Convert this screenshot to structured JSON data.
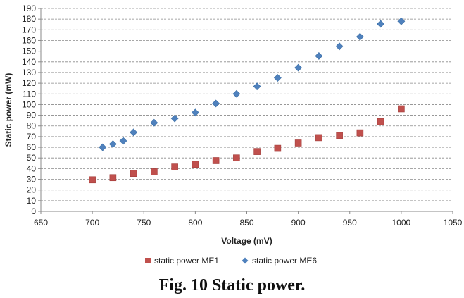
{
  "caption": "Fig. 10 Static power.",
  "chart_data": {
    "type": "scatter",
    "xlabel": "Voltage (mV)",
    "ylabel": "Static power (mW)",
    "xlim": [
      650,
      1050
    ],
    "ylim": [
      0,
      190
    ],
    "xticks": [
      650,
      700,
      750,
      800,
      850,
      900,
      950,
      1000,
      1050
    ],
    "yticks": [
      0,
      10,
      20,
      30,
      40,
      50,
      60,
      70,
      80,
      90,
      100,
      110,
      120,
      130,
      140,
      150,
      160,
      170,
      180,
      190
    ],
    "grid": "horizontal dashed",
    "legend_position": "bottom",
    "series": [
      {
        "name": "static power ME1",
        "marker": "square",
        "color": "#c0504d",
        "x": [
          700,
          720,
          740,
          760,
          780,
          800,
          820,
          840,
          860,
          880,
          900,
          920,
          940,
          960,
          980,
          1000
        ],
        "y": [
          29.5,
          31.5,
          35.5,
          37,
          41.5,
          44,
          47.5,
          50,
          56,
          59,
          64,
          69,
          71,
          73.5,
          84,
          96
        ]
      },
      {
        "name": "static power ME6",
        "marker": "diamond",
        "color": "#4f81bd",
        "x": [
          710,
          720,
          730,
          740,
          760,
          780,
          800,
          820,
          840,
          860,
          880,
          900,
          920,
          940,
          960,
          980,
          1000
        ],
        "y": [
          60,
          63,
          66,
          74,
          83,
          87,
          92.5,
          101,
          110,
          117,
          125,
          134.5,
          145.5,
          154.5,
          163.5,
          175.5,
          178
        ]
      }
    ]
  }
}
